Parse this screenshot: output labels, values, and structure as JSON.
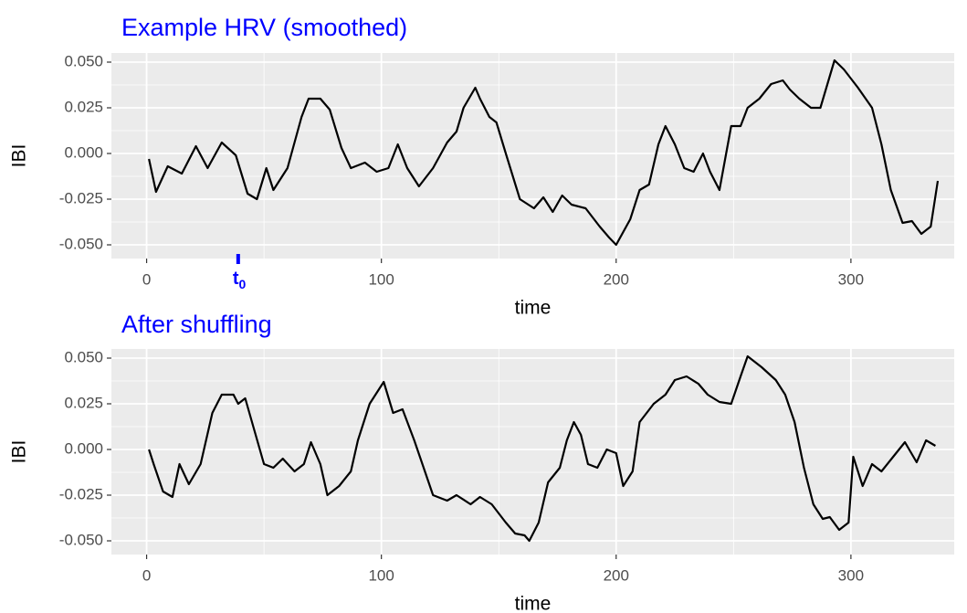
{
  "chart_data": [
    {
      "type": "line",
      "title": "Example HRV (smoothed)",
      "x_label": "time",
      "y_label": "IBI",
      "color": "#000000",
      "title_color": "#0000ff",
      "grid": true,
      "xlim": [
        -15,
        344
      ],
      "ylim": [
        -0.0575,
        0.055
      ],
      "xticks": [
        0,
        100,
        200,
        300
      ],
      "yticks": [
        {
          "value": -0.05,
          "label": "-0.050"
        },
        {
          "value": -0.025,
          "label": "-0.025"
        },
        {
          "value": 0,
          "label": "0.000"
        },
        {
          "value": 0.025,
          "label": "0.025"
        },
        {
          "value": 0.05,
          "label": "0.050"
        }
      ],
      "annotation": {
        "label": "t",
        "subscript": "0",
        "x": 39,
        "color": "#0000ff"
      },
      "x": [
        1,
        4,
        9,
        15,
        21,
        26,
        32,
        38,
        43,
        47,
        51,
        54,
        60,
        66,
        69,
        74,
        78,
        83,
        87,
        93,
        98,
        103,
        107,
        111,
        116,
        122,
        128,
        132,
        135,
        140,
        142,
        146,
        149,
        153,
        159,
        165,
        169,
        173,
        177,
        181,
        187,
        193,
        197,
        200,
        206,
        210,
        214,
        218,
        221,
        225,
        229,
        233,
        237,
        240,
        244,
        249,
        253,
        256,
        261,
        266,
        271,
        274,
        278,
        283,
        287,
        293,
        297,
        303,
        309,
        313,
        317,
        322,
        326,
        330,
        334,
        337
      ],
      "values": [
        -0.003,
        -0.021,
        -0.007,
        -0.011,
        0.004,
        -0.008,
        0.006,
        -0.001,
        -0.022,
        -0.025,
        -0.008,
        -0.02,
        -0.008,
        0.02,
        0.03,
        0.03,
        0.024,
        0.003,
        -0.008,
        -0.005,
        -0.01,
        -0.008,
        0.005,
        -0.008,
        -0.018,
        -0.008,
        0.006,
        0.012,
        0.025,
        0.036,
        0.03,
        0.02,
        0.017,
        0.0,
        -0.025,
        -0.03,
        -0.024,
        -0.032,
        -0.023,
        -0.028,
        -0.03,
        -0.04,
        -0.046,
        -0.05,
        -0.036,
        -0.02,
        -0.017,
        0.005,
        0.015,
        0.005,
        -0.008,
        -0.01,
        0.0,
        -0.01,
        -0.02,
        0.015,
        0.015,
        0.025,
        0.03,
        0.038,
        0.04,
        0.035,
        0.03,
        0.025,
        0.025,
        0.051,
        0.046,
        0.036,
        0.025,
        0.005,
        -0.02,
        -0.038,
        -0.037,
        -0.044,
        -0.04,
        -0.015
      ]
    },
    {
      "type": "line",
      "title": "After shuffling",
      "x_label": "time",
      "y_label": "IBI",
      "color": "#000000",
      "title_color": "#0000ff",
      "grid": true,
      "xlim": [
        -15,
        344
      ],
      "ylim": [
        -0.0575,
        0.055
      ],
      "xticks": [
        0,
        100,
        200,
        300
      ],
      "yticks": [
        {
          "value": -0.05,
          "label": "-0.050"
        },
        {
          "value": -0.025,
          "label": "-0.025"
        },
        {
          "value": 0,
          "label": "0.000"
        },
        {
          "value": 0.025,
          "label": "0.025"
        },
        {
          "value": 0.05,
          "label": "0.050"
        }
      ],
      "x": [
        1,
        3,
        7,
        11,
        14,
        18,
        23,
        28,
        32,
        37,
        39,
        42,
        46,
        50,
        54,
        58,
        63,
        67,
        70,
        74,
        77,
        82,
        87,
        90,
        95,
        101,
        105,
        109,
        114,
        118,
        122,
        128,
        132,
        138,
        142,
        147,
        153,
        157,
        161,
        163,
        167,
        171,
        176,
        179,
        182,
        185,
        188,
        192,
        196,
        200,
        203,
        207,
        210,
        216,
        221,
        225,
        230,
        235,
        239,
        244,
        249,
        253,
        256,
        262,
        268,
        272,
        276,
        280,
        284,
        288,
        291,
        295,
        299,
        301,
        305,
        309,
        313,
        318,
        323,
        328,
        332,
        336
      ],
      "values": [
        0.0,
        -0.008,
        -0.023,
        -0.026,
        -0.008,
        -0.019,
        -0.008,
        0.02,
        0.03,
        0.03,
        0.025,
        0.028,
        0.01,
        -0.008,
        -0.01,
        -0.005,
        -0.012,
        -0.008,
        0.004,
        -0.008,
        -0.025,
        -0.02,
        -0.012,
        0.005,
        0.025,
        0.037,
        0.02,
        0.022,
        0.005,
        -0.01,
        -0.025,
        -0.028,
        -0.025,
        -0.03,
        -0.026,
        -0.03,
        -0.04,
        -0.046,
        -0.047,
        -0.05,
        -0.04,
        -0.018,
        -0.01,
        0.005,
        0.015,
        0.008,
        -0.008,
        -0.01,
        0.0,
        -0.002,
        -0.02,
        -0.012,
        0.015,
        0.025,
        0.03,
        0.038,
        0.04,
        0.036,
        0.03,
        0.026,
        0.025,
        0.04,
        0.051,
        0.045,
        0.038,
        0.03,
        0.015,
        -0.01,
        -0.03,
        -0.038,
        -0.037,
        -0.044,
        -0.04,
        -0.004,
        -0.02,
        -0.008,
        -0.012,
        -0.004,
        0.004,
        -0.007,
        0.005,
        0.002
      ]
    }
  ]
}
